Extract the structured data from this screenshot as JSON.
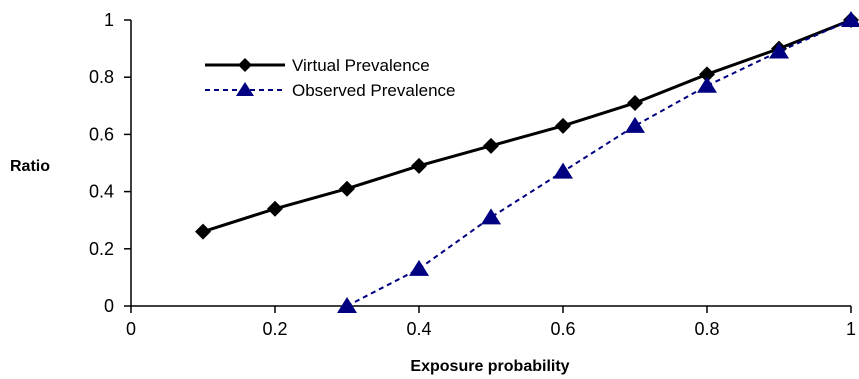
{
  "chart_data": {
    "type": "line",
    "xlabel": "Exposure probability",
    "ylabel": "Ratio",
    "xlim": [
      0,
      1
    ],
    "ylim": [
      0,
      1
    ],
    "x_ticks": [
      "0",
      "0.2",
      "0.4",
      "0.6",
      "0.8",
      "1"
    ],
    "y_ticks": [
      "0",
      "0.2",
      "0.4",
      "0.6",
      "0.8",
      "1"
    ],
    "grid": false,
    "legend_position": "top-left",
    "series": [
      {
        "name": "Virtual Prevalence",
        "color": "#000000",
        "line_style": "solid",
        "marker": "diamond",
        "x": [
          0.1,
          0.2,
          0.3,
          0.4,
          0.5,
          0.6,
          0.7,
          0.8,
          0.9,
          1.0
        ],
        "y": [
          0.26,
          0.34,
          0.41,
          0.49,
          0.56,
          0.63,
          0.71,
          0.81,
          0.9,
          1.0
        ]
      },
      {
        "name": "Observed Prevalence",
        "color": "#000080",
        "line_style": "dashed",
        "marker": "triangle",
        "x": [
          0.3,
          0.4,
          0.5,
          0.6,
          0.7,
          0.8,
          0.9,
          1.0
        ],
        "y": [
          0.0,
          0.13,
          0.31,
          0.47,
          0.63,
          0.77,
          0.89,
          1.0
        ]
      }
    ]
  }
}
